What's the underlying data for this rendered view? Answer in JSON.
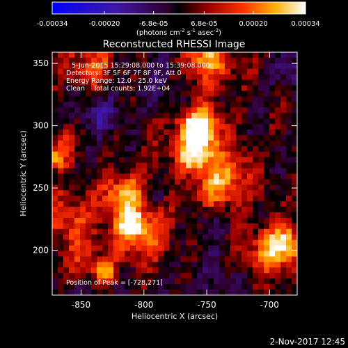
{
  "colorbar": {
    "ticks": [
      {
        "value": -0.00034,
        "label": "-0.00034"
      },
      {
        "value": -0.0002,
        "label": "-0.00020"
      },
      {
        "value": -6.8e-05,
        "label": "-6.8e-05"
      },
      {
        "value": 6.8e-05,
        "label": "6.8e-05"
      },
      {
        "value": 0.0002,
        "label": "0.00020"
      },
      {
        "value": 0.00034,
        "label": "0.00034"
      }
    ],
    "range": [
      -0.00034,
      0.00034
    ],
    "unit_label": "(photons cm",
    "unit_exp1": "-2",
    "unit_mid": " s",
    "unit_exp2": "-1",
    "unit_mid2": " asec",
    "unit_exp3": "-2",
    "unit_end": ")"
  },
  "chart_data": {
    "type": "heatmap",
    "title": "Reconstructed RHESSI Image",
    "xlabel": "Heliocentric X (arcsec)",
    "ylabel": "Heliocentric Y (arcsec)",
    "xlim": [
      -873,
      -678
    ],
    "ylim": [
      164,
      359
    ],
    "xticks": [
      -850,
      -800,
      -750,
      -700
    ],
    "yticks": [
      200,
      250,
      300,
      350
    ],
    "annotations": [
      "5-Jun-2015 15:29:08.000 to 15:39:08.000",
      "Detectors: 3F 5F 6F 7F 8F 9F, Att 0",
      "Energy Range: 12.0 - 25.0 keV",
      "Clean    Total counts: 1.92E+04",
      "Position of Peak = [-728,271]"
    ],
    "peak": [
      -728,
      271
    ],
    "colormap": "blue-purple-red-yellow-white",
    "grid": false
  },
  "footer": {
    "date": "2-Nov-2017 12:45"
  }
}
